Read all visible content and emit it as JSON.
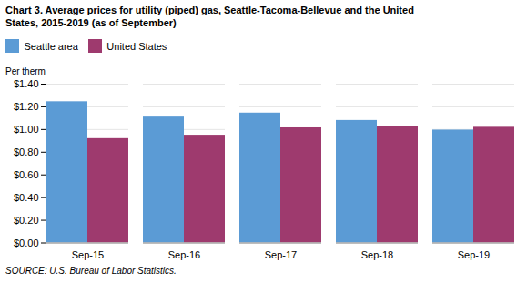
{
  "chart_data": {
    "type": "bar",
    "title": "Chart 3. Average prices for utility (piped) gas, Seattle-Tacoma-Bellevue and the United",
    "subtitle": "States, 2015-2019  (as of September)",
    "ylabel": "Per therm",
    "source": "SOURCE: U.S. Bureau of Labor Statistics.",
    "categories": [
      "Sep-15",
      "Sep-16",
      "Sep-17",
      "Sep-18",
      "Sep-19"
    ],
    "series": [
      {
        "name": "Seattle area",
        "color": "#5B9BD5",
        "values": [
          1.245,
          1.11,
          1.145,
          1.08,
          0.995
        ]
      },
      {
        "name": "United States",
        "color": "#9E3A6E",
        "values": [
          0.92,
          0.95,
          1.015,
          1.025,
          1.02
        ]
      }
    ],
    "ylim": [
      0,
      1.4
    ],
    "yticks": [
      {
        "value": 0.0,
        "label": "$0.00"
      },
      {
        "value": 0.2,
        "label": "$0.20"
      },
      {
        "value": 0.4,
        "label": "$0.40"
      },
      {
        "value": 0.6,
        "label": "$0.60"
      },
      {
        "value": 0.8,
        "label": "$0.80"
      },
      {
        "value": 1.0,
        "label": "$1.00"
      },
      {
        "value": 1.2,
        "label": "$1.20"
      },
      {
        "value": 1.4,
        "label": "$1.40"
      }
    ],
    "grid": true,
    "legend": "upper left"
  }
}
